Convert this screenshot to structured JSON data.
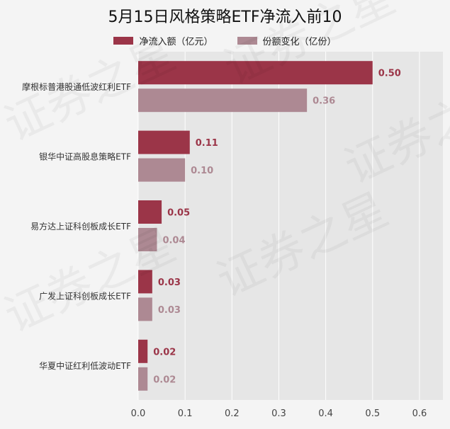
{
  "chart_data": {
    "type": "bar",
    "orientation": "horizontal",
    "title": "5月15日风格策略ETF净流入前10",
    "categories": [
      "摩根标普港股通低波红利ETF",
      "银华中证高股息策略ETF",
      "易方达上证科创板成长ETF",
      "广发上证科创板成长ETF",
      "华夏中证红利低波动ETF"
    ],
    "series": [
      {
        "name": "净流入额（亿元）",
        "values": [
          0.5,
          0.11,
          0.05,
          0.03,
          0.02
        ],
        "labels": [
          "0.50",
          "0.11",
          "0.05",
          "0.03",
          "0.02"
        ],
        "color": "#9b3548"
      },
      {
        "name": "份额变化（亿份）",
        "values": [
          0.36,
          0.1,
          0.04,
          0.03,
          0.02
        ],
        "labels": [
          "0.36",
          "0.10",
          "0.04",
          "0.03",
          "0.02"
        ],
        "color": "#ad8993"
      }
    ],
    "xlim": [
      0,
      0.65
    ],
    "xticks": [
      "0.0",
      "0.1",
      "0.2",
      "0.3",
      "0.4",
      "0.5",
      "0.6"
    ],
    "grid": true,
    "legend": "top-center",
    "xlabel": "",
    "ylabel": ""
  },
  "watermark": "证券之星"
}
